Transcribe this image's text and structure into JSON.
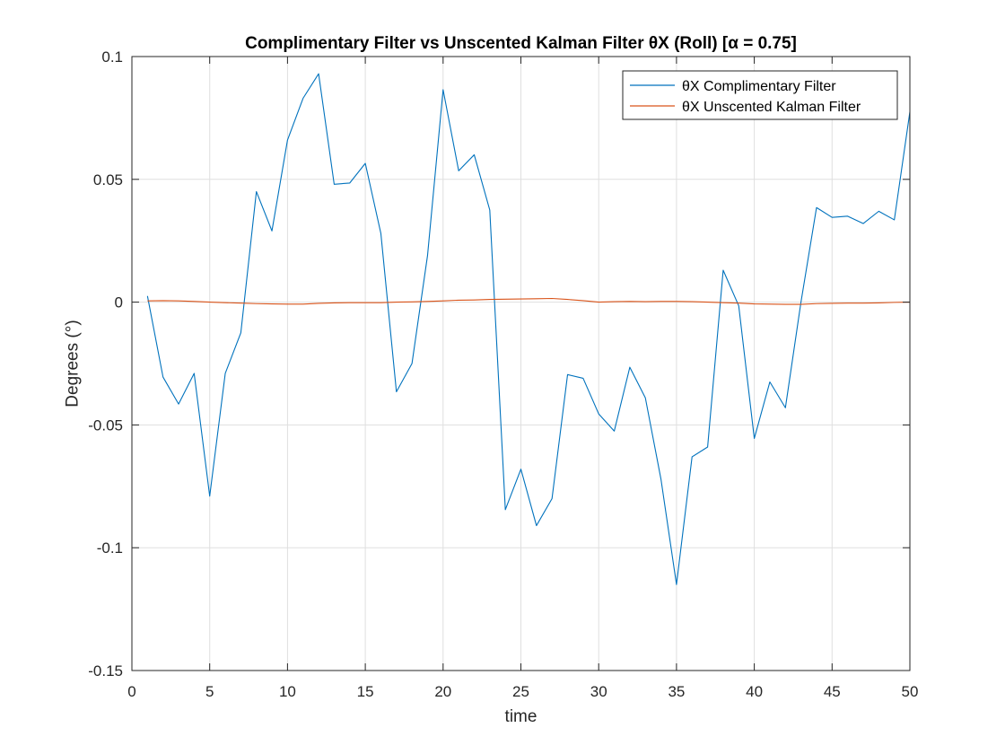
{
  "chart_data": {
    "type": "line",
    "title": "Complimentary Filter vs Unscented Kalman Filter θX (Roll) [α = 0.75]",
    "xlabel": "time",
    "ylabel": "Degrees (°)",
    "xlim": [
      0,
      50
    ],
    "ylim": [
      -0.15,
      0.1
    ],
    "xticks": [
      0,
      5,
      10,
      15,
      20,
      25,
      30,
      35,
      40,
      45,
      50
    ],
    "xtick_labels": [
      "0",
      "5",
      "10",
      "15",
      "20",
      "25",
      "30",
      "35",
      "40",
      "45",
      "50"
    ],
    "yticks": [
      -0.15,
      -0.1,
      -0.05,
      0,
      0.05,
      0.1
    ],
    "ytick_labels": [
      "-0.15",
      "-0.1",
      "-0.05",
      "0",
      "0.05",
      "0.1"
    ],
    "grid": true,
    "legend_position": "top-right",
    "x": [
      1,
      2,
      3,
      4,
      5,
      6,
      7,
      8,
      9,
      10,
      11,
      12,
      13,
      14,
      15,
      16,
      17,
      18,
      19,
      20,
      21,
      22,
      23,
      24,
      25,
      26,
      27,
      28,
      29,
      30,
      31,
      32,
      33,
      34,
      35,
      36,
      37,
      38,
      39,
      40,
      41,
      42,
      43,
      44,
      45,
      46,
      47,
      48,
      49,
      50
    ],
    "series": [
      {
        "name": "θX Complimentary Filter",
        "color": "#0072BD",
        "values": [
          0.0025,
          -0.0305,
          -0.0415,
          -0.029,
          -0.079,
          -0.029,
          -0.0125,
          0.045,
          0.029,
          0.066,
          0.083,
          0.093,
          0.048,
          0.0485,
          0.0565,
          0.028,
          -0.0365,
          -0.025,
          0.019,
          0.0865,
          0.0535,
          0.06,
          0.0375,
          -0.0845,
          -0.068,
          -0.091,
          -0.08,
          -0.0295,
          -0.031,
          -0.0455,
          -0.0525,
          -0.0265,
          -0.039,
          -0.072,
          -0.115,
          -0.063,
          -0.059,
          0.013,
          -0.0015,
          -0.0555,
          -0.0325,
          -0.043,
          0.0,
          0.0385,
          0.0345,
          0.035,
          0.032,
          0.037,
          0.0335,
          0.0775
        ]
      },
      {
        "name": "θX Unscented Kalman Filter",
        "color": "#D95319",
        "values": [
          0.0005,
          0.0006,
          0.0005,
          0.0003,
          0.0,
          -0.0002,
          -0.0004,
          -0.0006,
          -0.0007,
          -0.0008,
          -0.0008,
          -0.0005,
          -0.0003,
          -0.0002,
          -0.0002,
          -0.0002,
          0.0,
          0.0001,
          0.0003,
          0.0005,
          0.0008,
          0.0009,
          0.0011,
          0.0012,
          0.0013,
          0.0014,
          0.0015,
          0.0011,
          0.0006,
          0.0,
          0.0002,
          0.0003,
          0.0002,
          0.0003,
          0.0003,
          0.0002,
          0.0,
          -0.0002,
          -0.0004,
          -0.0007,
          -0.0008,
          -0.0009,
          -0.0009,
          -0.0006,
          -0.0005,
          -0.0004,
          -0.0004,
          -0.0003,
          -0.0001,
          0.0
        ]
      }
    ]
  }
}
